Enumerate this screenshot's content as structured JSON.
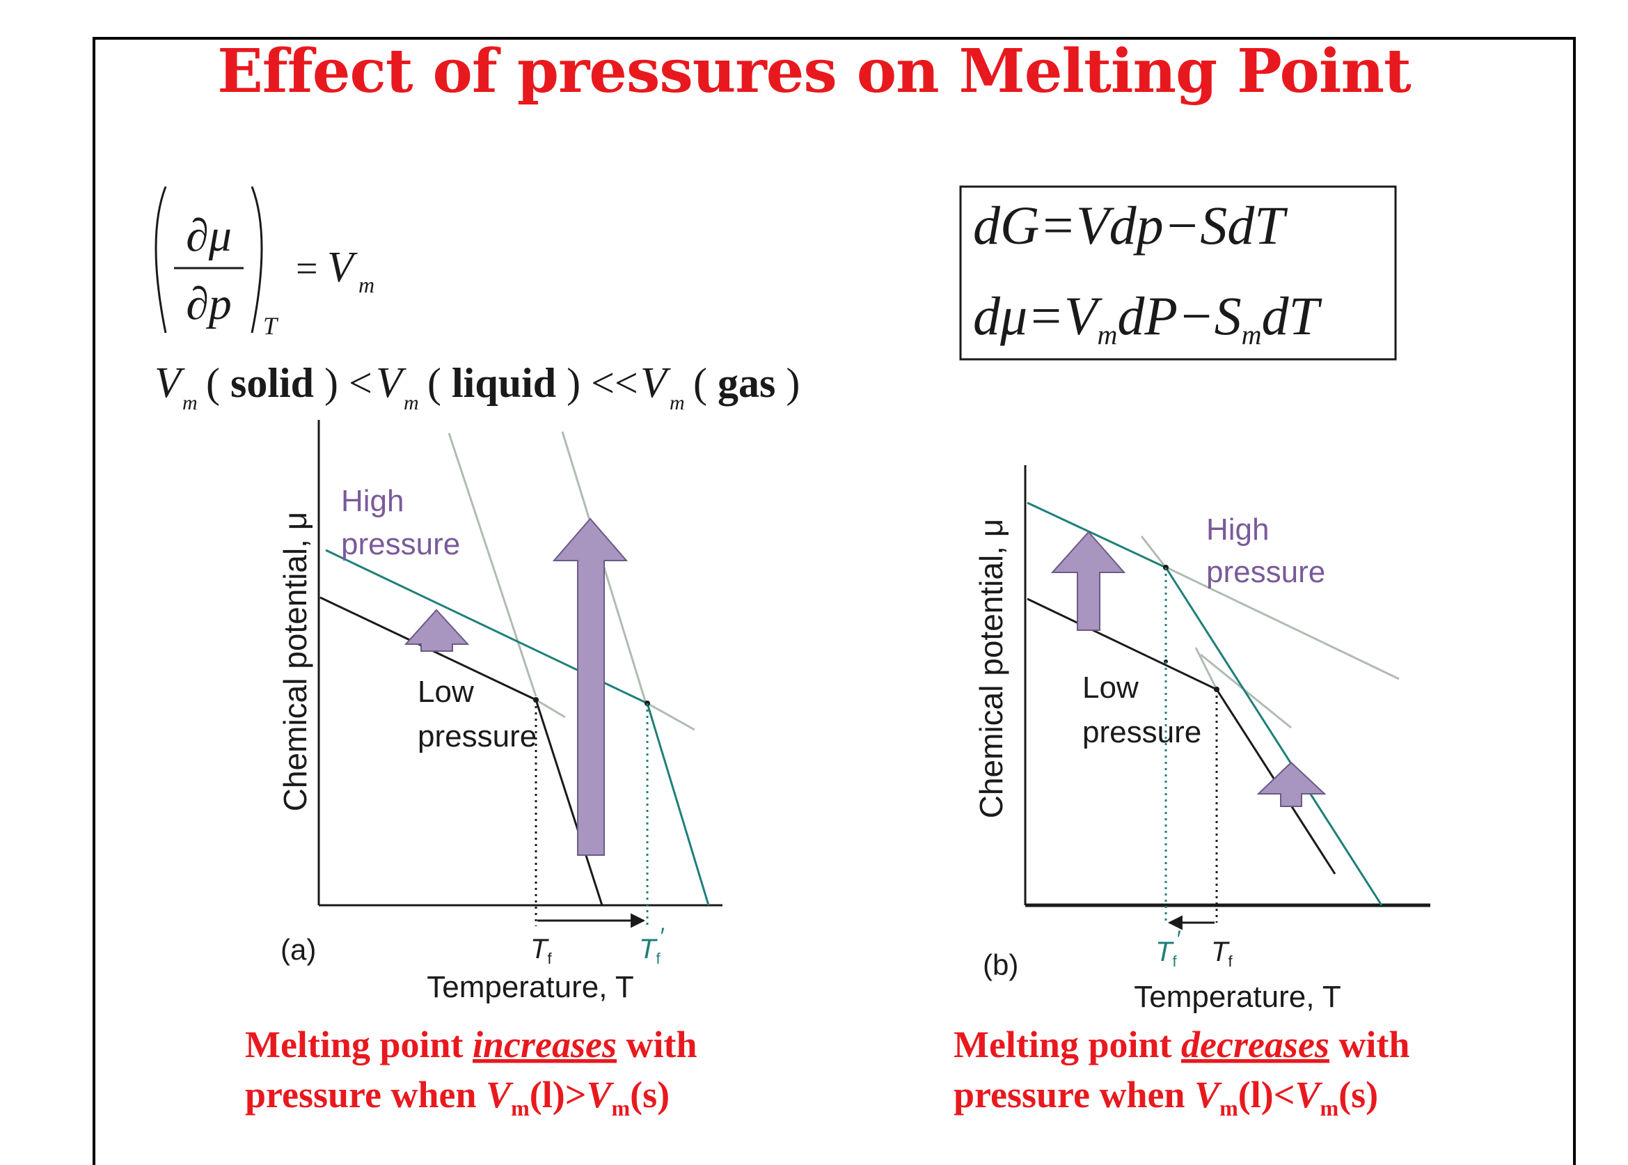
{
  "title": "Effect of pressures on Melting Point",
  "equations": {
    "partial_lhs_num": "∂μ",
    "partial_lhs_den": "∂p",
    "partial_sub": "T",
    "partial_rhs_eq": "=",
    "partial_rhs_V": "V",
    "partial_rhs_sub": "m",
    "ineq": {
      "V1": "V",
      "m1": "m",
      "p1": "(",
      "w1": "solid",
      "c1": ")",
      "lt1": "<",
      "V2": "V",
      "m2": "m",
      "p2": "(",
      "w2": "liquid",
      "c2": ")",
      "lt2": "<<",
      "V3": "V",
      "m3": "m",
      "p3": "(",
      "w3": "gas",
      "c3": ")"
    },
    "boxed_line1": "dG=Vdp−SdT",
    "boxed_line2_a": "dμ=V",
    "boxed_line2_m1": "m",
    "boxed_line2_b": "dP−S",
    "boxed_line2_m2": "m",
    "boxed_line2_c": "dT"
  },
  "diagram_a": {
    "panel_label": "(a)",
    "y_axis_label": "Chemical potential, μ",
    "x_axis_label": "Temperature, T",
    "high_pressure_label_1": "High",
    "high_pressure_label_2": "pressure",
    "low_pressure_label_1": "Low",
    "low_pressure_label_2": "pressure",
    "tf_label": "T",
    "tf_sub": "f",
    "tf_prime_label": "T",
    "tf_prime_sub": "f",
    "tf_prime_mark": "′"
  },
  "diagram_b": {
    "panel_label": "(b)",
    "y_axis_label": "Chemical potential, μ",
    "x_axis_label": "Temperature, T",
    "high_pressure_label_1": "High",
    "high_pressure_label_2": "pressure",
    "low_pressure_label_1": "Low",
    "low_pressure_label_2": "pressure",
    "tf_label": "T",
    "tf_sub": "f",
    "tf_prime_label": "T",
    "tf_prime_sub": "f",
    "tf_prime_mark": "′"
  },
  "caption_a": {
    "line1_a": "Melting point ",
    "line1_em": "increases",
    "line1_b": " with",
    "line2_a": "pressure when ",
    "v1": "V",
    "s1": "m",
    "p1": "(l)>",
    "v2": "V",
    "s2": "m",
    "p2": "(s)"
  },
  "caption_b": {
    "line1_a": "Melting point ",
    "line1_em": "decreases",
    "line1_b": " with",
    "line2_a": "pressure when ",
    "v1": "V",
    "s1": "m",
    "p1": "(l)<",
    "v2": "V",
    "s2": "m",
    "p2": "(s)"
  },
  "colors": {
    "title_red": "#e8191e",
    "teal": "#1f7f79",
    "purple_label": "#7a5a9a",
    "arrow_fill": "#a896c0",
    "arrow_stroke": "#6a5a88",
    "faint_line": "#a8b8a8",
    "black": "#1a1a1a"
  }
}
